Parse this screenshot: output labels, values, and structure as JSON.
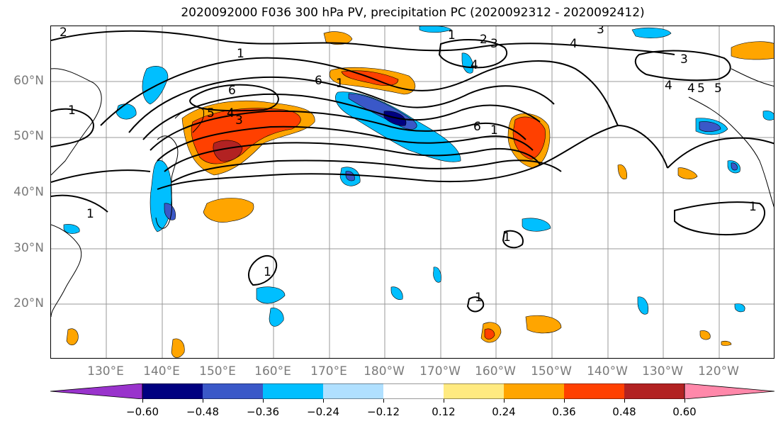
{
  "title": "2020092000 F036 300 hPa PV, precipitation PC (2020092312 - 2020092412)",
  "lat_labels": [
    "60°N",
    "50°N",
    "40°N",
    "30°N",
    "20°N"
  ],
  "lon_labels": [
    "130°E",
    "140°E",
    "150°E",
    "160°E",
    "170°E",
    "180°W",
    "170°W",
    "160°W",
    "150°W",
    "140°W",
    "130°W",
    "120°W"
  ],
  "colorbar": {
    "ticks": [
      "−0.60",
      "−0.48",
      "−0.36",
      "−0.24",
      "−0.12",
      "0.12",
      "0.24",
      "0.36",
      "0.48",
      "0.60"
    ],
    "colors": [
      "#9933cc",
      "#000080",
      "#3a58c8",
      "#00bfff",
      "#b0e0ff",
      "#ffffff",
      "#ffea80",
      "#ffa500",
      "#ff4000",
      "#b22222",
      "#ff88aa"
    ]
  },
  "contour_labels": [
    "2",
    "1",
    "1",
    "3",
    "4",
    "5",
    "6",
    "1",
    "5",
    "4",
    "3",
    "6",
    "1",
    "6",
    "1",
    "4",
    "3",
    "2",
    "4",
    "3",
    "4",
    "5",
    "1",
    "1",
    "1",
    "1",
    "1"
  ],
  "colors": {
    "contour": "#000000",
    "grid": "#999999",
    "axis_label": "#7a7a7a"
  }
}
